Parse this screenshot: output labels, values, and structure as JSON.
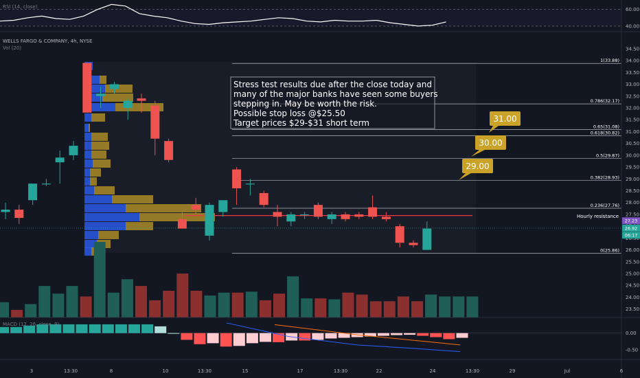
{
  "header": {
    "rsi_label": "RSI (14, close)",
    "symbol_label": "WELLS FARGO & COMPANY, 4h, NYSE",
    "vol_label": "Vol (20)",
    "macd_label": "MACD (12, 26, close, 9)"
  },
  "annotation": {
    "lines": [
      "Stress test results due after the close today and",
      "many of the major banks have seen some buyers",
      "stepping in. May be worth the risk.",
      "Possible stop loss @$25.50",
      "Target prices $29-$31 short term"
    ]
  },
  "targets": [
    {
      "label": "31.00",
      "price": 31.0
    },
    {
      "label": "30.00",
      "price": 30.0
    },
    {
      "label": "29.00",
      "price": 29.0
    }
  ],
  "resistance": {
    "label": "Hourly resistance",
    "price": 27.45
  },
  "price_badges": [
    {
      "label": "27.23",
      "price": 27.23,
      "color": "#7e57c2"
    },
    {
      "label": "26.92",
      "price": 26.92,
      "color": "#26a69a"
    },
    {
      "label": "06:17",
      "price": 26.62,
      "color": "#26a69a"
    }
  ],
  "colors": {
    "up": "#26a69a",
    "down": "#ef5350",
    "background": "#131722",
    "target_box": "#c9a227",
    "resistance": "#f23645"
  },
  "chart_data": [
    {
      "type": "line",
      "name": "RSI",
      "ylim": [
        35,
        68
      ],
      "y_ticks": [
        "60.00",
        "40.00"
      ],
      "y_tick_values": [
        60,
        40
      ],
      "values": [
        46,
        47,
        50,
        52,
        49,
        48,
        52,
        60,
        66,
        64,
        55,
        52,
        50,
        46,
        43,
        42,
        44,
        45,
        46,
        48,
        50,
        49,
        46,
        45,
        47,
        46,
        46,
        47,
        44,
        42,
        40,
        41,
        45
      ]
    },
    {
      "type": "candlestick",
      "name": "WFC 4h",
      "x_tick_labels": [
        "3",
        "13:30",
        "8",
        "10",
        "13:30",
        "15",
        "17",
        "13:30",
        "22",
        "24",
        "13:30",
        "29",
        "Jul",
        "6"
      ],
      "y_ticks": [
        "34.50",
        "34.00",
        "33.50",
        "33.00",
        "32.50",
        "32.00",
        "31.50",
        "31.00",
        "30.50",
        "30.00",
        "29.50",
        "29.00",
        "28.50",
        "28.00",
        "27.50",
        "27.00",
        "26.50",
        "26.00",
        "25.50",
        "25.00",
        "24.50",
        "24.00",
        "23.50"
      ],
      "y_tick_values": [
        34.5,
        34.0,
        33.5,
        33.0,
        32.5,
        32.0,
        31.5,
        31.0,
        30.5,
        30.0,
        29.5,
        29.0,
        28.5,
        28.0,
        27.5,
        27.0,
        26.5,
        26.0,
        25.5,
        25.0,
        24.5,
        24.0,
        23.5
      ],
      "ylim": [
        23.2,
        34.7
      ],
      "candles": [
        {
          "o": 27.6,
          "h": 28.0,
          "l": 27.3,
          "c": 27.7
        },
        {
          "o": 27.7,
          "h": 27.9,
          "l": 27.1,
          "c": 27.35
        },
        {
          "o": 28.1,
          "h": 28.7,
          "l": 27.9,
          "c": 28.8
        },
        {
          "o": 28.8,
          "h": 29.0,
          "l": 28.7,
          "c": 28.8
        },
        {
          "o": 29.7,
          "h": 30.2,
          "l": 28.8,
          "c": 29.9
        },
        {
          "o": 30.0,
          "h": 30.6,
          "l": 29.8,
          "c": 30.4
        },
        {
          "o": 33.9,
          "h": 33.9,
          "l": 31.8,
          "c": 31.8
        },
        {
          "o": 32.5,
          "h": 32.9,
          "l": 32.0,
          "c": 32.6
        },
        {
          "o": 32.8,
          "h": 33.1,
          "l": 32.6,
          "c": 33.0
        },
        {
          "o": 32.0,
          "h": 32.4,
          "l": 31.5,
          "c": 32.3
        },
        {
          "o": 32.4,
          "h": 32.6,
          "l": 31.8,
          "c": 32.3
        },
        {
          "o": 32.1,
          "h": 32.3,
          "l": 30.0,
          "c": 30.7
        },
        {
          "o": 30.6,
          "h": 30.7,
          "l": 29.7,
          "c": 29.8
        },
        {
          "o": 27.3,
          "h": 27.6,
          "l": 26.9,
          "c": 26.9
        },
        {
          "o": 27.9,
          "h": 28.2,
          "l": 27.5,
          "c": 27.7
        },
        {
          "o": 26.6,
          "h": 28.0,
          "l": 26.4,
          "c": 27.9
        },
        {
          "o": 27.6,
          "h": 28.0,
          "l": 27.4,
          "c": 28.1
        },
        {
          "o": 29.4,
          "h": 29.5,
          "l": 27.9,
          "c": 28.6
        },
        {
          "o": 28.8,
          "h": 29.0,
          "l": 28.3,
          "c": 28.8
        },
        {
          "o": 28.4,
          "h": 28.5,
          "l": 27.8,
          "c": 27.9
        },
        {
          "o": 27.6,
          "h": 27.9,
          "l": 27.0,
          "c": 27.4
        },
        {
          "o": 27.2,
          "h": 27.6,
          "l": 27.0,
          "c": 27.5
        },
        {
          "o": 27.5,
          "h": 27.6,
          "l": 27.3,
          "c": 27.5
        },
        {
          "o": 27.9,
          "h": 28.0,
          "l": 27.3,
          "c": 27.4
        },
        {
          "o": 27.3,
          "h": 27.6,
          "l": 27.1,
          "c": 27.5
        },
        {
          "o": 27.5,
          "h": 27.6,
          "l": 27.2,
          "c": 27.3
        },
        {
          "o": 27.5,
          "h": 27.6,
          "l": 27.3,
          "c": 27.4
        },
        {
          "o": 27.8,
          "h": 28.3,
          "l": 27.3,
          "c": 27.4
        },
        {
          "o": 27.4,
          "h": 27.6,
          "l": 27.2,
          "c": 27.3
        },
        {
          "o": 27.0,
          "h": 27.1,
          "l": 26.1,
          "c": 26.3
        },
        {
          "o": 26.3,
          "h": 26.4,
          "l": 26.1,
          "c": 26.2
        },
        {
          "o": 26.0,
          "h": 27.2,
          "l": 26.0,
          "c": 26.9
        }
      ],
      "fib_levels": [
        {
          "label": "1(33.88)",
          "price": 33.88
        },
        {
          "label": "0.786(32.17)",
          "price": 32.17
        },
        {
          "label": "0.65(31.08)",
          "price": 31.08
        },
        {
          "label": "0.618(30.82)",
          "price": 30.82
        },
        {
          "label": "0.5(29.87)",
          "price": 29.87
        },
        {
          "label": "0.382(28.93)",
          "price": 28.93
        },
        {
          "label": "0.236(27.76)",
          "price": 27.76
        },
        {
          "label": "0(25.86)",
          "price": 25.86
        }
      ]
    },
    {
      "type": "bar",
      "name": "Volume",
      "values": [
        16,
        8,
        14,
        33,
        25,
        33,
        22,
        79,
        26,
        40,
        33,
        18,
        28,
        46,
        28,
        23,
        26,
        26,
        27,
        18,
        25,
        43,
        20,
        20,
        19,
        26,
        24,
        17,
        17,
        22,
        17,
        24,
        22,
        22,
        22
      ]
    },
    {
      "type": "bar",
      "name": "MACD histogram",
      "ylim": [
        -0.72,
        0.38
      ],
      "y_ticks": [
        "0.00",
        "-0.50"
      ],
      "y_tick_values": [
        0,
        -0.5
      ],
      "values": [
        0.18,
        0.18,
        0.22,
        0.26,
        0.26,
        0.26,
        0.26,
        0.26,
        0.26,
        0.26,
        0.26,
        0.26,
        0.2,
        0.0,
        -0.2,
        -0.33,
        -0.3,
        -0.4,
        -0.38,
        -0.3,
        -0.26,
        -0.27,
        -0.22,
        -0.22,
        -0.2,
        -0.16,
        -0.14,
        -0.12,
        -0.1,
        -0.08,
        -0.06,
        -0.05,
        -0.08,
        -0.12,
        -0.18,
        -0.14
      ]
    }
  ]
}
